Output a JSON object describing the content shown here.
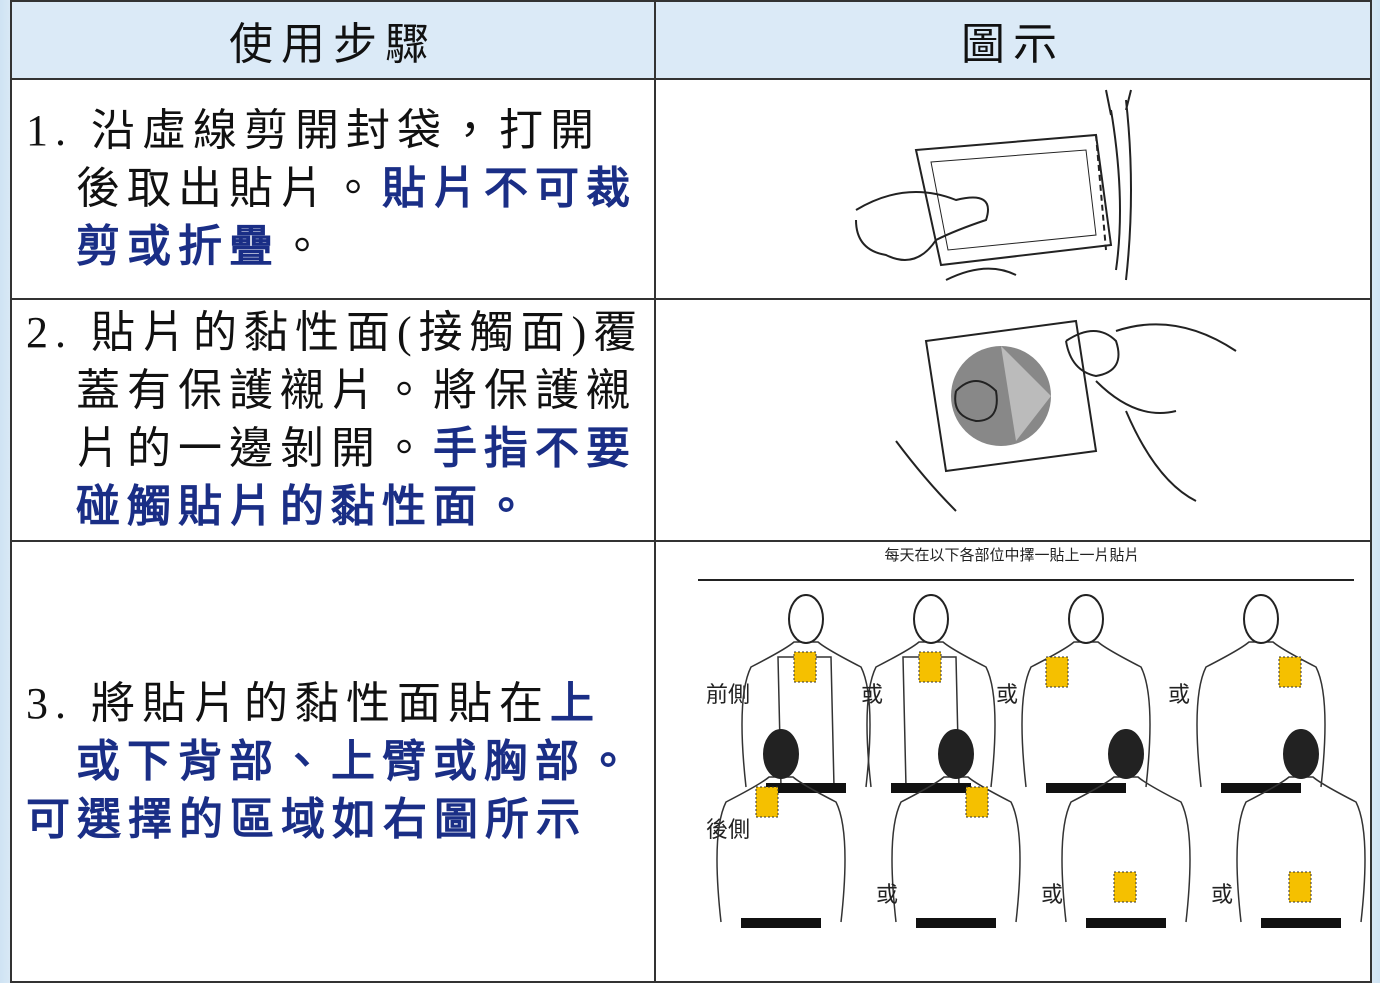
{
  "table": {
    "header": [
      "使用步驟",
      "圖示"
    ],
    "rows": [
      {
        "step": [
          {
            "text": "1. 沿虛線剪開封袋，打開後取出貼片。",
            "emphasis": false
          },
          {
            "text": "貼片不可裁剪或折疊",
            "emphasis": true
          },
          {
            "text": "。",
            "emphasis": false
          }
        ]
      },
      {
        "step": [
          {
            "text": "2. 貼片的黏性面(接觸面)覆蓋有保護襯片。將保護襯片的一邊剝開。",
            "emphasis": false
          },
          {
            "text": "手指不要碰觸貼片的黏性面。",
            "emphasis": true
          }
        ]
      },
      {
        "step": [
          {
            "text": "3. 將貼片的黏性面貼在",
            "emphasis": false
          },
          {
            "text": "上或下背部、上臂或胸部。",
            "emphasis": true
          },
          {
            "text": "可選擇的區域如右圖所示",
            "emphasis": true
          }
        ],
        "figure": {
          "caption": "每天在以下各部位中擇一貼上一片貼片",
          "front": "前側",
          "back": "後側",
          "connector": "或"
        }
      }
    ]
  }
}
